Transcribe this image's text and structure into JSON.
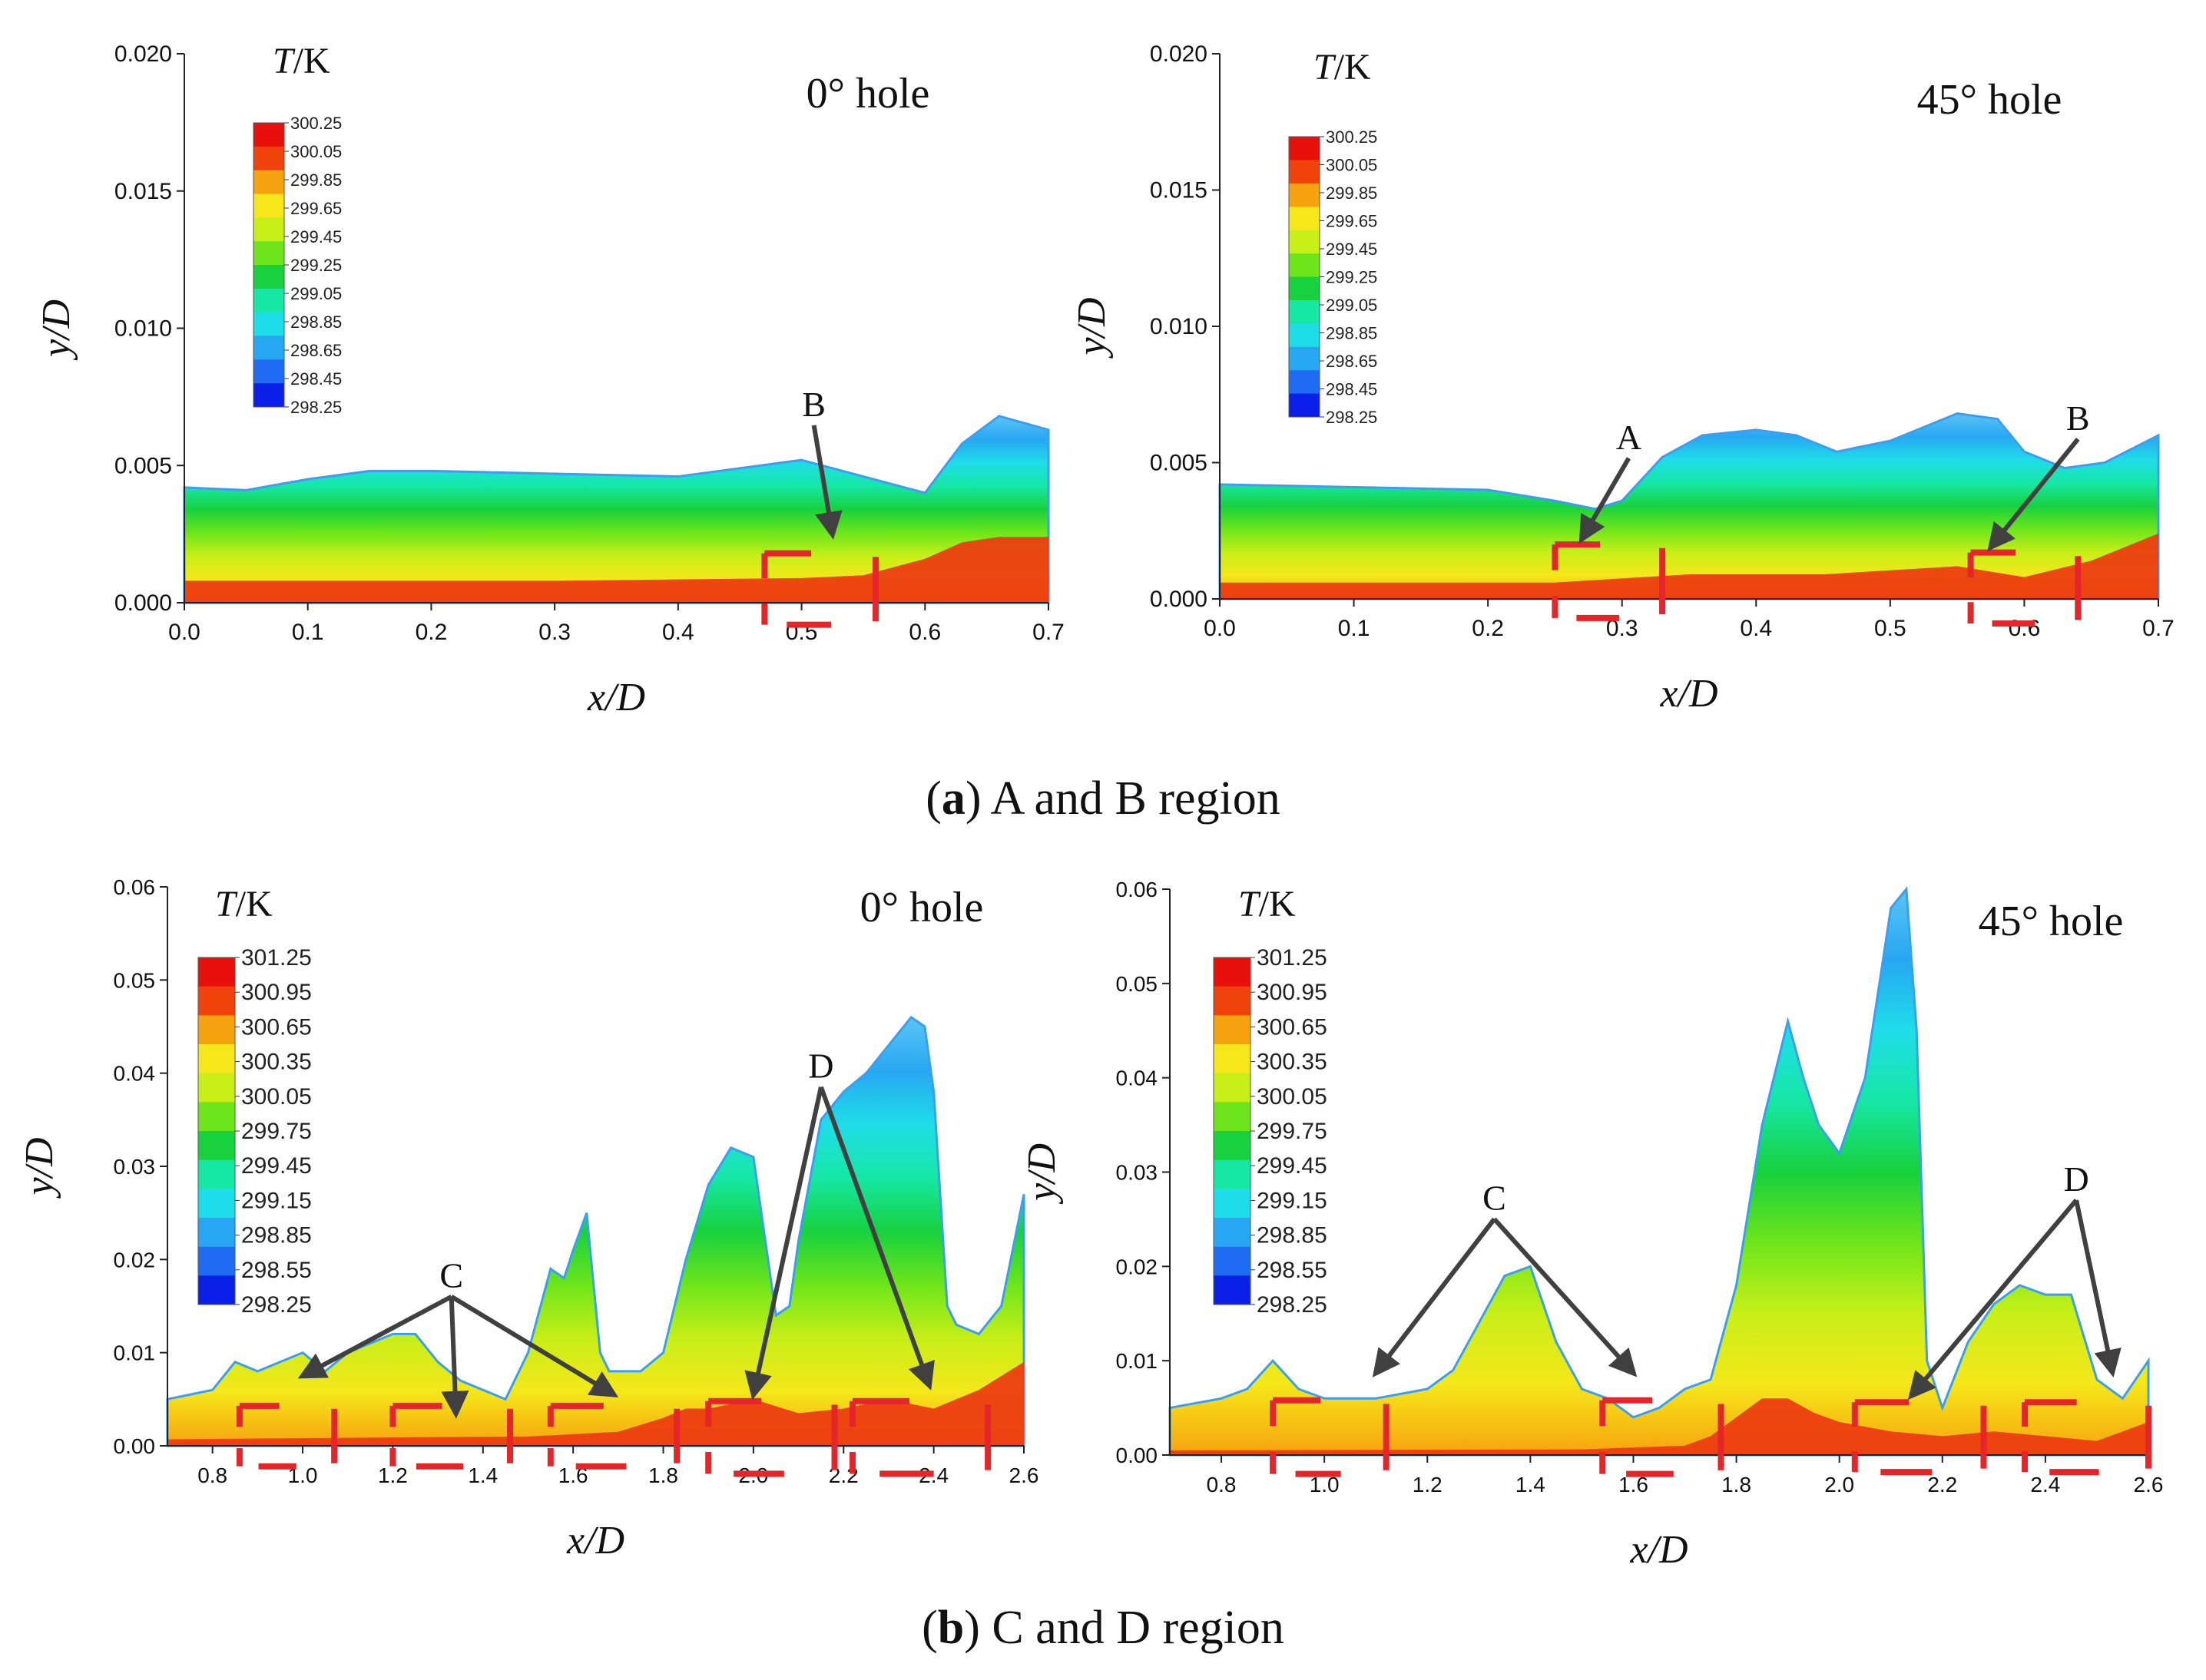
{
  "figure": {
    "captions": [
      {
        "bold": "a",
        "text": " A and B region"
      },
      {
        "bold": "b",
        "text": " C and D region"
      }
    ]
  },
  "colors": {
    "scale": [
      "#0a1fe8",
      "#1f6cf2",
      "#27a7f2",
      "#1fdde8",
      "#16e7a4",
      "#18d13e",
      "#6ee51a",
      "#c8ef18",
      "#f5e71a",
      "#f7a20f",
      "#f0420b",
      "#e8100b"
    ],
    "annotation_red": "#e4252a",
    "arrow_gray": "#404040"
  },
  "chart_data": [
    {
      "id": "a-left",
      "type": "heatmap",
      "title": "0°  hole",
      "xlabel": "x/D",
      "ylabel": "y/D",
      "xlim": [
        0.0,
        0.7
      ],
      "ylim": [
        0.0,
        0.02
      ],
      "xticks": [
        0.0,
        0.1,
        0.2,
        0.3,
        0.4,
        0.5,
        0.6,
        0.7
      ],
      "xtick_decimals": 1,
      "yticks": [
        0.0,
        0.005,
        0.01,
        0.015,
        0.02
      ],
      "ytick_decimals": 3,
      "legend": {
        "title_italic": "T",
        "title_rest": "/K",
        "levels": [
          "300.25",
          "300.05",
          "299.85",
          "299.65",
          "299.45",
          "299.25",
          "299.05",
          "298.85",
          "298.65",
          "298.45",
          "298.25"
        ]
      },
      "boundary": {
        "x": [
          0.0,
          0.05,
          0.1,
          0.15,
          0.2,
          0.3,
          0.4,
          0.45,
          0.5,
          0.55,
          0.6,
          0.63,
          0.66,
          0.7
        ],
        "y": [
          0.0042,
          0.0041,
          0.0045,
          0.0048,
          0.0048,
          0.0047,
          0.0046,
          0.0049,
          0.0052,
          0.0046,
          0.004,
          0.0058,
          0.0068,
          0.0063
        ]
      },
      "hot": {
        "x": [
          0.0,
          0.3,
          0.5,
          0.55,
          0.6,
          0.63,
          0.66,
          0.7
        ],
        "y": [
          0.0008,
          0.0008,
          0.0009,
          0.001,
          0.0016,
          0.0022,
          0.0024,
          0.0024
        ]
      },
      "brackets": [
        {
          "x": [
            0.47,
            0.56
          ],
          "y": [
            -0.0008,
            0.0018
          ]
        }
      ],
      "labels": [
        {
          "text": "B",
          "x": 0.51,
          "y": 0.0068,
          "tx": 0.525,
          "ty": 0.0025
        }
      ]
    },
    {
      "id": "a-right",
      "type": "heatmap",
      "title": "45°  hole",
      "xlabel": "x/D",
      "ylabel": "y/D",
      "xlim": [
        0.0,
        0.7
      ],
      "ylim": [
        0.0,
        0.02
      ],
      "xticks": [
        0.0,
        0.1,
        0.2,
        0.3,
        0.4,
        0.5,
        0.6,
        0.7
      ],
      "xtick_decimals": 1,
      "yticks": [
        0.0,
        0.005,
        0.01,
        0.015,
        0.02
      ],
      "ytick_decimals": 3,
      "legend": {
        "title_italic": "T",
        "title_rest": "/K",
        "levels": [
          "300.25",
          "300.05",
          "299.85",
          "299.65",
          "299.45",
          "299.25",
          "299.05",
          "298.85",
          "298.65",
          "298.45",
          "298.25"
        ]
      },
      "boundary": {
        "x": [
          0.0,
          0.1,
          0.2,
          0.25,
          0.28,
          0.3,
          0.33,
          0.36,
          0.4,
          0.43,
          0.46,
          0.5,
          0.55,
          0.58,
          0.6,
          0.63,
          0.66,
          0.7
        ],
        "y": [
          0.0042,
          0.0041,
          0.004,
          0.0036,
          0.0033,
          0.0036,
          0.0052,
          0.006,
          0.0062,
          0.006,
          0.0054,
          0.0058,
          0.0068,
          0.0066,
          0.0054,
          0.0048,
          0.005,
          0.006
        ]
      },
      "hot": {
        "x": [
          0.0,
          0.25,
          0.35,
          0.45,
          0.55,
          0.6,
          0.65,
          0.7
        ],
        "y": [
          0.0006,
          0.0006,
          0.0009,
          0.0009,
          0.0012,
          0.0008,
          0.0014,
          0.0024
        ]
      },
      "brackets": [
        {
          "x": [
            0.25,
            0.33
          ],
          "y": [
            -0.0007,
            0.002
          ]
        },
        {
          "x": [
            0.56,
            0.64
          ],
          "y": [
            -0.0009,
            0.0017
          ]
        }
      ],
      "labels": [
        {
          "text": "A",
          "x": 0.305,
          "y": 0.0055,
          "tx": 0.27,
          "ty": 0.0022
        },
        {
          "text": "B",
          "x": 0.64,
          "y": 0.0062,
          "tx": 0.575,
          "ty": 0.0019
        }
      ]
    },
    {
      "id": "b-left",
      "type": "heatmap",
      "title": "0°  hole",
      "xlabel": "x/D",
      "ylabel": "y/D",
      "xlim": [
        0.7,
        2.6
      ],
      "ylim": [
        0.0,
        0.06
      ],
      "xticks": [
        0.8,
        1.0,
        1.2,
        1.4,
        1.6,
        1.8,
        2.0,
        2.2,
        2.4,
        2.6
      ],
      "xtick_decimals": 1,
      "yticks": [
        0.0,
        0.01,
        0.02,
        0.03,
        0.04,
        0.05,
        0.06
      ],
      "ytick_decimals": 2,
      "legend": {
        "title_italic": "T",
        "title_rest": "/K",
        "levels": [
          "301.25",
          "300.95",
          "300.65",
          "300.35",
          "300.05",
          "299.75",
          "299.45",
          "299.15",
          "298.85",
          "298.55",
          "298.25"
        ]
      },
      "boundary": {
        "x": [
          0.7,
          0.8,
          0.85,
          0.9,
          0.95,
          1.0,
          1.05,
          1.1,
          1.2,
          1.25,
          1.3,
          1.35,
          1.4,
          1.45,
          1.5,
          1.55,
          1.58,
          1.6,
          1.63,
          1.66,
          1.68,
          1.7,
          1.75,
          1.8,
          1.85,
          1.9,
          1.95,
          2.0,
          2.05,
          2.08,
          2.1,
          2.15,
          2.2,
          2.25,
          2.3,
          2.35,
          2.38,
          2.4,
          2.43,
          2.45,
          2.5,
          2.55,
          2.6
        ],
        "y": [
          0.005,
          0.006,
          0.009,
          0.008,
          0.009,
          0.01,
          0.008,
          0.01,
          0.012,
          0.012,
          0.009,
          0.007,
          0.006,
          0.005,
          0.01,
          0.019,
          0.018,
          0.021,
          0.025,
          0.01,
          0.008,
          0.008,
          0.008,
          0.01,
          0.02,
          0.028,
          0.032,
          0.031,
          0.014,
          0.015,
          0.022,
          0.035,
          0.038,
          0.04,
          0.043,
          0.046,
          0.045,
          0.038,
          0.015,
          0.013,
          0.012,
          0.015,
          0.027
        ]
      },
      "hot": {
        "x": [
          0.7,
          1.2,
          1.5,
          1.7,
          1.8,
          1.85,
          1.9,
          2.0,
          2.1,
          2.2,
          2.3,
          2.4,
          2.5,
          2.6
        ],
        "y": [
          0.0007,
          0.0009,
          0.001,
          0.0015,
          0.003,
          0.004,
          0.004,
          0.005,
          0.0035,
          0.004,
          0.005,
          0.004,
          0.006,
          0.009
        ]
      },
      "brackets": [
        {
          "x": [
            0.86,
            1.07
          ],
          "y": [
            -0.0022,
            0.0043
          ]
        },
        {
          "x": [
            1.2,
            1.46
          ],
          "y": [
            -0.0022,
            0.0043
          ]
        },
        {
          "x": [
            1.55,
            1.83
          ],
          "y": [
            -0.0022,
            0.0043
          ]
        },
        {
          "x": [
            1.9,
            2.18
          ],
          "y": [
            -0.003,
            0.0048
          ]
        },
        {
          "x": [
            2.22,
            2.52
          ],
          "y": [
            -0.003,
            0.0048
          ]
        }
      ],
      "labels": [
        {
          "text": "C",
          "x": 1.33,
          "y": 0.017,
          "tx": 1.0,
          "ty": 0.0075,
          "targets": [
            [
              1.0,
              0.0075
            ],
            [
              1.34,
              0.0035
            ],
            [
              1.69,
              0.0055
            ]
          ]
        },
        {
          "text": "D",
          "x": 2.15,
          "y": 0.0395,
          "targets": [
            [
              2.0,
              0.0055
            ],
            [
              2.39,
              0.0065
            ]
          ]
        }
      ]
    },
    {
      "id": "b-right",
      "type": "heatmap",
      "title": "45°  hole",
      "xlabel": "x/D",
      "ylabel": "y/D",
      "xlim": [
        0.7,
        2.6
      ],
      "ylim": [
        0.0,
        0.06
      ],
      "xticks": [
        0.8,
        1.0,
        1.2,
        1.4,
        1.6,
        1.8,
        2.0,
        2.2,
        2.4,
        2.6
      ],
      "xtick_decimals": 1,
      "yticks": [
        0.0,
        0.01,
        0.02,
        0.03,
        0.04,
        0.05,
        0.06
      ],
      "ytick_decimals": 2,
      "legend": {
        "title_italic": "T",
        "title_rest": "/K",
        "levels": [
          "301.25",
          "300.95",
          "300.65",
          "300.35",
          "300.05",
          "299.75",
          "299.45",
          "299.15",
          "298.85",
          "298.55",
          "298.25"
        ]
      },
      "boundary": {
        "x": [
          0.7,
          0.8,
          0.85,
          0.9,
          0.95,
          1.0,
          1.1,
          1.2,
          1.25,
          1.3,
          1.35,
          1.4,
          1.45,
          1.5,
          1.55,
          1.6,
          1.65,
          1.7,
          1.75,
          1.8,
          1.85,
          1.9,
          1.93,
          1.96,
          2.0,
          2.05,
          2.1,
          2.13,
          2.15,
          2.17,
          2.2,
          2.25,
          2.3,
          2.35,
          2.4,
          2.45,
          2.5,
          2.55,
          2.6
        ],
        "y": [
          0.005,
          0.006,
          0.007,
          0.01,
          0.007,
          0.006,
          0.006,
          0.007,
          0.009,
          0.014,
          0.019,
          0.02,
          0.012,
          0.007,
          0.006,
          0.004,
          0.005,
          0.007,
          0.008,
          0.018,
          0.035,
          0.046,
          0.04,
          0.035,
          0.032,
          0.04,
          0.058,
          0.06,
          0.045,
          0.01,
          0.005,
          0.012,
          0.016,
          0.018,
          0.017,
          0.017,
          0.008,
          0.006,
          0.01
        ]
      },
      "hot": {
        "x": [
          0.7,
          1.5,
          1.7,
          1.75,
          1.8,
          1.85,
          1.9,
          1.95,
          2.0,
          2.1,
          2.2,
          2.3,
          2.4,
          2.5,
          2.6
        ],
        "y": [
          0.0005,
          0.0006,
          0.001,
          0.002,
          0.004,
          0.006,
          0.006,
          0.0045,
          0.0035,
          0.0025,
          0.002,
          0.0025,
          0.002,
          0.0015,
          0.0035
        ]
      },
      "brackets": [
        {
          "x": [
            0.9,
            1.12
          ],
          "y": [
            -0.002,
            0.0058
          ]
        },
        {
          "x": [
            1.54,
            1.77
          ],
          "y": [
            -0.002,
            0.0058
          ]
        },
        {
          "x": [
            2.03,
            2.28
          ],
          "y": [
            -0.0018,
            0.0056
          ]
        },
        {
          "x": [
            2.36,
            2.6
          ],
          "y": [
            -0.0018,
            0.0056
          ]
        }
      ],
      "labels": [
        {
          "text": "C",
          "x": 1.33,
          "y": 0.026,
          "targets": [
            [
              1.1,
              0.0087
            ],
            [
              1.6,
              0.0087
            ]
          ]
        },
        {
          "text": "D",
          "x": 2.46,
          "y": 0.028,
          "targets": [
            [
              2.14,
              0.0063
            ],
            [
              2.53,
              0.0088
            ]
          ]
        }
      ]
    }
  ]
}
